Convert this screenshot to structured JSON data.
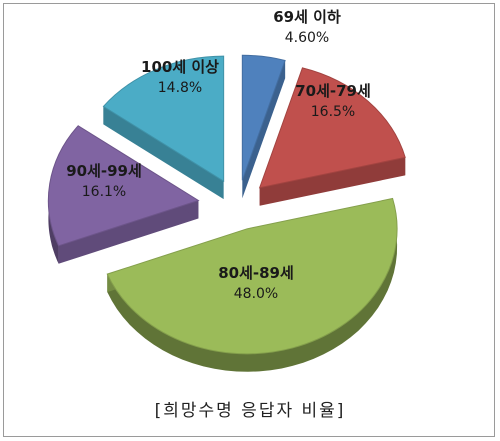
{
  "caption": "[희망수명 응답자 비율]",
  "chart_data": {
    "type": "pie",
    "title": "",
    "exploded": true,
    "style": "3d",
    "slices": [
      {
        "label": "69세 이하",
        "value_label": "4.60%",
        "value": 4.6,
        "color": "#4f81bd"
      },
      {
        "label": "70세-79세",
        "value_label": "16.5%",
        "value": 16.5,
        "color": "#c0504d"
      },
      {
        "label": "80세-89세",
        "value_label": "48.0%",
        "value": 48.0,
        "color": "#9bbb59"
      },
      {
        "label": "90세-99세",
        "value_label": "16.1%",
        "value": 16.1,
        "color": "#8064a2"
      },
      {
        "label": "100세 이상",
        "value_label": "14.8%",
        "value": 14.8,
        "color": "#4bacc6"
      }
    ]
  }
}
